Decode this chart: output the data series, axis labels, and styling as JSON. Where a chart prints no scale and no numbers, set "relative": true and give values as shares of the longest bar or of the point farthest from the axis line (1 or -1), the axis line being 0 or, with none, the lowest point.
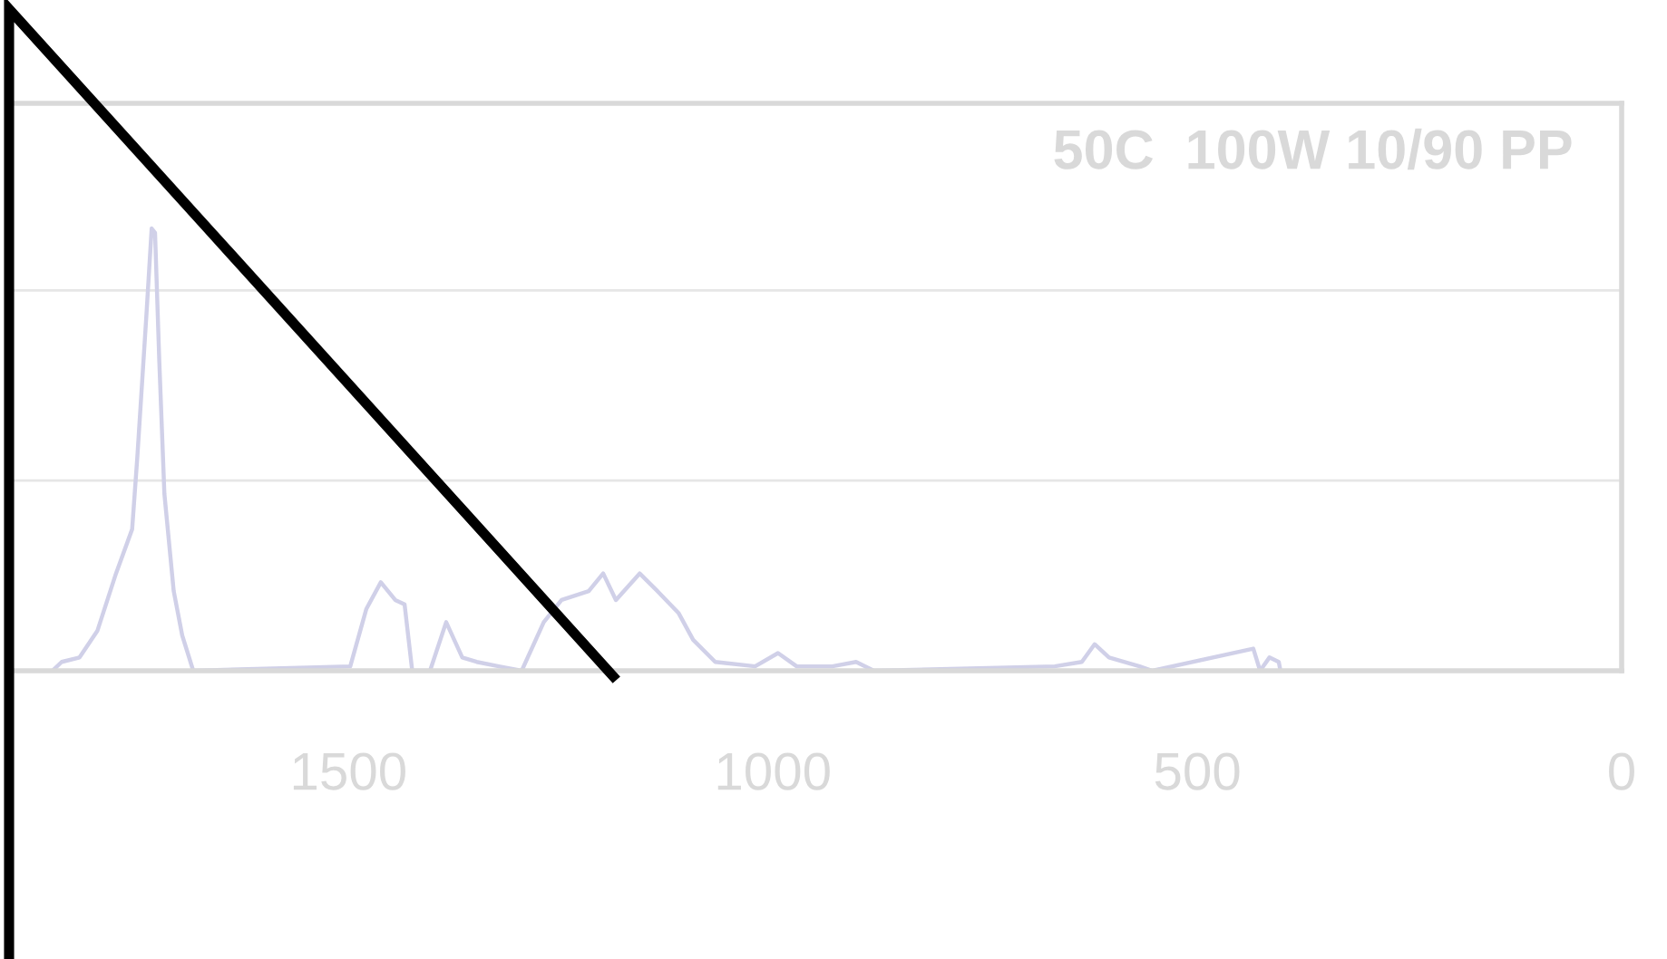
{
  "chart_data": {
    "type": "line",
    "title": "50C  100W 10/90 PP",
    "relative": true,
    "x": [
      1849,
      1838,
      1817,
      1796,
      1774,
      1755,
      1749,
      1738,
      1732,
      1728,
      1723,
      1717,
      1706,
      1696,
      1683,
      1498,
      1479,
      1462,
      1445,
      1434,
      1425,
      1404,
      1385,
      1366,
      1349,
      1323,
      1296,
      1270,
      1249,
      1217,
      1200,
      1185,
      1157,
      1136,
      1111,
      1094,
      1068,
      1021,
      994,
      972,
      930,
      902,
      881,
      668,
      636,
      621,
      604,
      568,
      553,
      434,
      426,
      415,
      404,
      402
    ],
    "series": [
      {
        "color": "#d0d0e8",
        "values": [
          0,
          0.02,
          0.03,
          0.09,
          0.22,
          0.32,
          0.48,
          0.81,
          1.0,
          0.99,
          0.7,
          0.4,
          0.18,
          0.08,
          0,
          0.01,
          0.14,
          0.2,
          0.16,
          0.15,
          0,
          0,
          0.11,
          0.03,
          0.02,
          0.01,
          0,
          0.11,
          0.16,
          0.18,
          0.22,
          0.16,
          0.22,
          0.18,
          0.13,
          0.07,
          0.02,
          0.01,
          0.04,
          0.01,
          0.01,
          0.02,
          0,
          0.01,
          0.02,
          0.06,
          0.03,
          0.01,
          0,
          0.05,
          0,
          0.03,
          0.02,
          0
        ]
      }
    ],
    "xlim": [
      1900,
      0
    ],
    "xticks": [
      1500,
      1000,
      500,
      0
    ],
    "ref_lines": [
      {
        "axis": "y",
        "value": 0.43,
        "color": "#e6e6e6"
      },
      {
        "axis": "y",
        "value": 0.86,
        "color": "#e6e6e6"
      }
    ],
    "legend": false,
    "marker": "none",
    "line_style": "solid"
  }
}
